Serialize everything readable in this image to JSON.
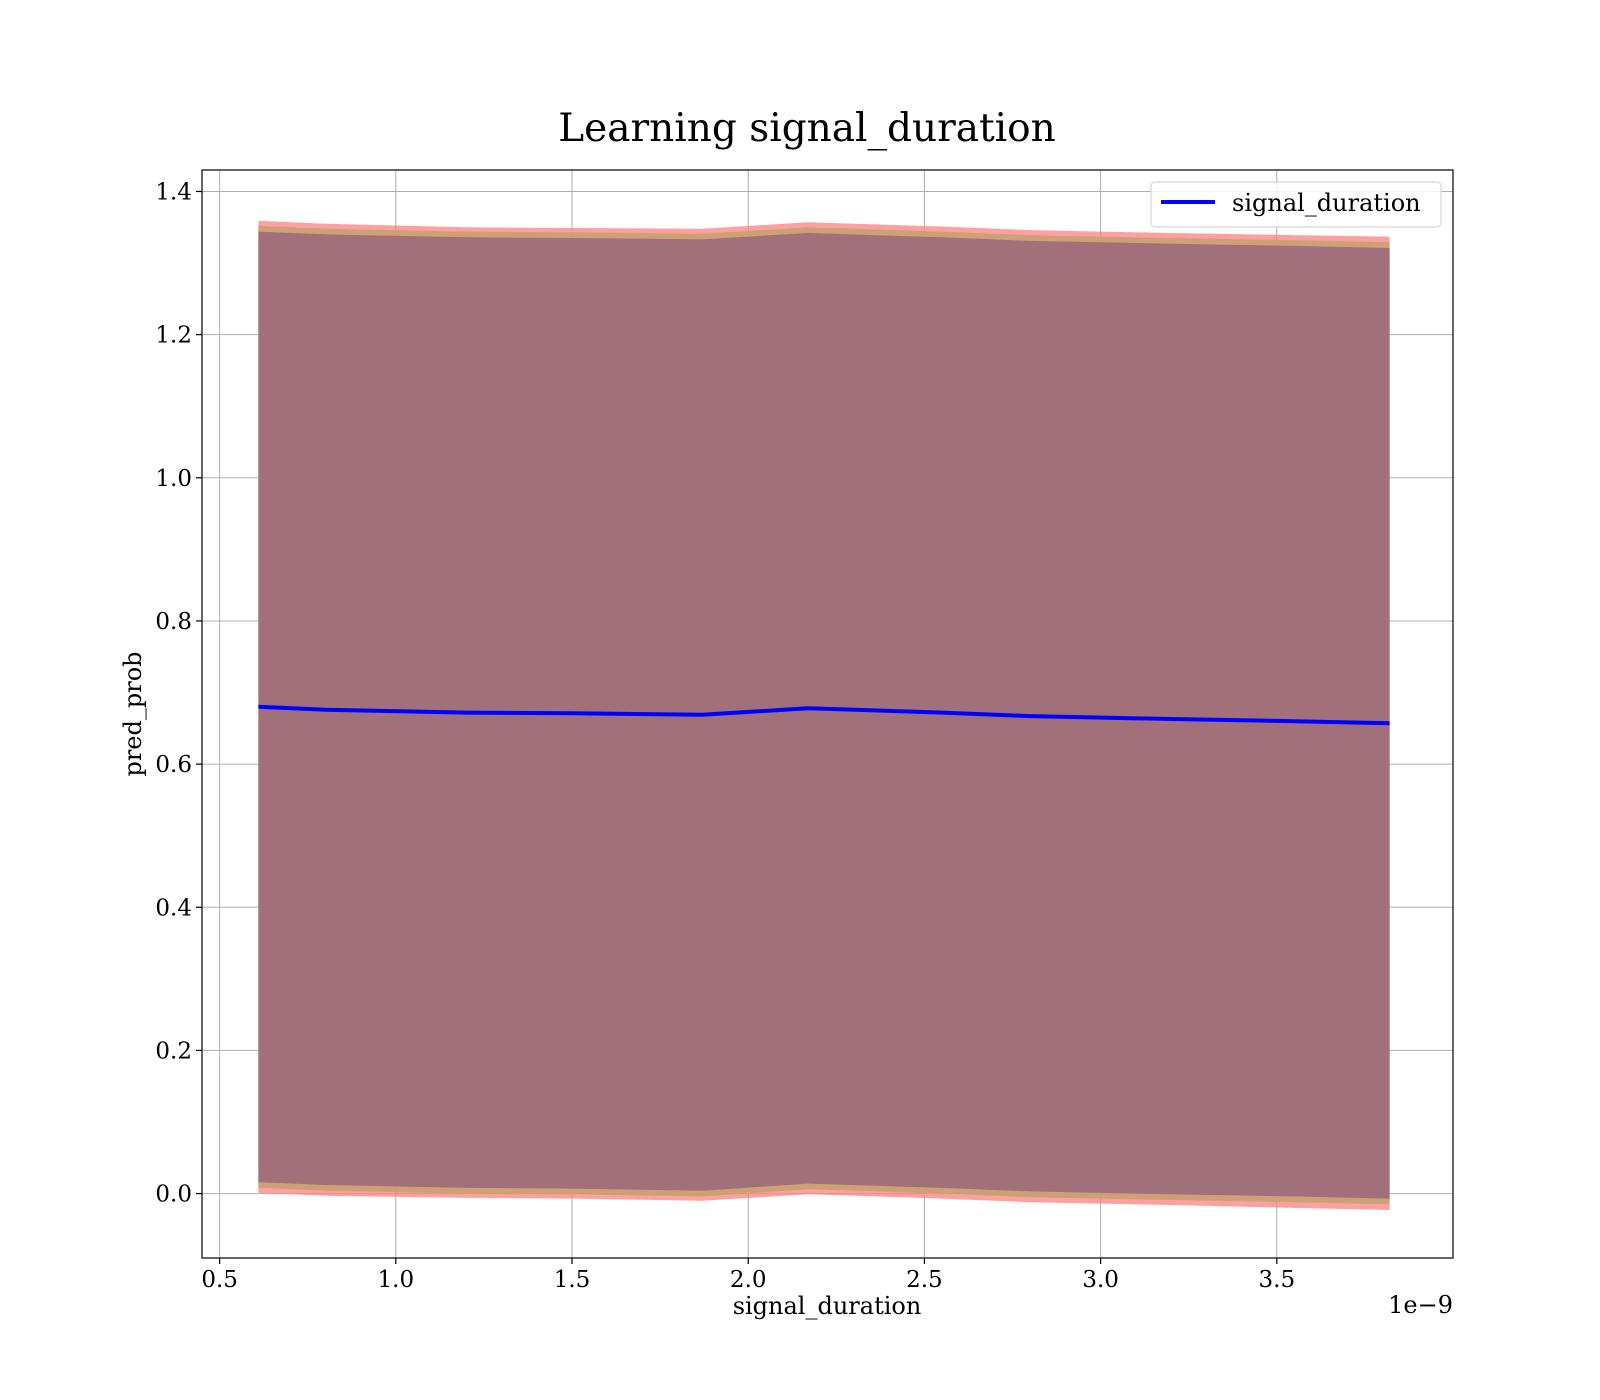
{
  "chart_data": {
    "type": "line",
    "title": "Learning signal_duration",
    "xlabel": "signal_duration",
    "ylabel": "pred_prob",
    "x_offset_text": "1e−9",
    "x_ticks": [
      "0.5",
      "1.0",
      "1.5",
      "2.0",
      "2.5",
      "3.0",
      "3.5"
    ],
    "y_ticks": [
      "0.0",
      "0.2",
      "0.4",
      "0.6",
      "0.8",
      "1.0",
      "1.2",
      "1.4"
    ],
    "xlim": [
      0.45,
      4.0
    ],
    "ylim": [
      -0.09,
      1.43
    ],
    "x_scale_note": "x values in units of 1e-9",
    "grid": true,
    "legend_position": "upper right",
    "colors": {
      "line": "#0000ff",
      "band_outer": "#ff8080",
      "band_middle": "#c8a070",
      "band_inner": "#a2707a"
    },
    "series": [
      {
        "name": "signal_duration",
        "x": [
          0.61,
          0.8,
          1.2,
          1.5,
          1.87,
          2.17,
          2.55,
          2.8,
          3.2,
          3.55,
          3.82
        ],
        "y": [
          0.68,
          0.676,
          0.672,
          0.671,
          0.669,
          0.678,
          0.672,
          0.667,
          0.663,
          0.66,
          0.657
        ]
      }
    ],
    "bands": [
      {
        "level": "outer",
        "lower": [
          0.001,
          -0.003,
          -0.006,
          -0.007,
          -0.01,
          -0.001,
          -0.007,
          -0.012,
          -0.016,
          -0.02,
          -0.023
        ],
        "upper": [
          1.359,
          1.355,
          1.35,
          1.349,
          1.348,
          1.357,
          1.351,
          1.346,
          1.342,
          1.339,
          1.337
        ]
      },
      {
        "level": "middle",
        "lower": [
          0.008,
          0.004,
          0.0,
          -0.001,
          -0.004,
          0.006,
          0.0,
          -0.005,
          -0.009,
          -0.012,
          -0.015
        ],
        "upper": [
          1.352,
          1.348,
          1.344,
          1.343,
          1.341,
          1.35,
          1.344,
          1.339,
          1.335,
          1.332,
          1.329
        ]
      },
      {
        "level": "inner",
        "lower": [
          0.016,
          0.012,
          0.008,
          0.007,
          0.004,
          0.014,
          0.008,
          0.003,
          -0.001,
          -0.004,
          -0.007
        ],
        "upper": [
          1.344,
          1.34,
          1.336,
          1.335,
          1.333,
          1.342,
          1.336,
          1.331,
          1.327,
          1.324,
          1.321
        ]
      }
    ]
  }
}
